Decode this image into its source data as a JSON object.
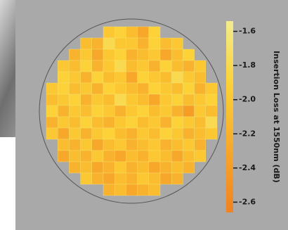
{
  "chart_data": {
    "type": "heatmap",
    "colorbar_label": "Insertion Loss at 1550nm (dB)",
    "zlim": [
      -2.66,
      -1.54
    ],
    "zticks": [
      -1.6,
      -1.8,
      {
        "value": -2,
        "label": "-2.0"
      },
      -2.2,
      -2.4,
      -2.6
    ],
    "colormap": [
      "#ef8320",
      "#f7a82a",
      "#fcd135",
      "#f3ec8e"
    ],
    "z": [
      [
        null,
        null,
        null,
        null,
        null,
        -2.0,
        -1.9,
        -2.1,
        -2.3,
        -1.9,
        null,
        null,
        null,
        null,
        null
      ],
      [
        null,
        null,
        null,
        -2.1,
        -2.2,
        -1.8,
        -2.0,
        -2.0,
        -2.2,
        -1.9,
        -2.1,
        -2.0,
        null,
        null,
        null
      ],
      [
        null,
        null,
        -2.2,
        -2.0,
        -2.3,
        -2.0,
        -1.9,
        -2.2,
        -2.1,
        -2.0,
        -2.3,
        -2.1,
        -1.9,
        null,
        null
      ],
      [
        null,
        -2.0,
        -2.1,
        -1.9,
        -2.2,
        -2.0,
        -1.8,
        -2.1,
        -2.0,
        -2.2,
        -1.9,
        -2.1,
        -2.2,
        -2.0,
        null
      ],
      [
        null,
        -1.9,
        -2.0,
        -2.2,
        -1.9,
        -2.1,
        -2.0,
        -2.3,
        -1.9,
        -2.0,
        -2.1,
        -1.8,
        -2.0,
        -2.1,
        null
      ],
      [
        -2.0,
        -1.9,
        -2.1,
        -2.0,
        -2.2,
        -1.9,
        -2.0,
        -2.1,
        -2.2,
        -1.9,
        -2.0,
        -2.1,
        -1.9,
        -2.2,
        -2.0
      ],
      [
        -2.1,
        -2.0,
        -1.9,
        -2.2,
        -2.0,
        -2.1,
        -1.8,
        -2.0,
        -2.1,
        -2.3,
        -2.0,
        -1.9,
        -2.1,
        -2.0,
        -1.9
      ],
      [
        -1.9,
        -2.2,
        -2.0,
        -2.1,
        -1.9,
        -2.0,
        -2.2,
        -2.0,
        -1.9,
        -2.1,
        -2.0,
        -2.2,
        -2.4,
        -2.0,
        -2.1
      ],
      [
        -2.2,
        -2.0,
        -2.1,
        -1.9,
        -2.1,
        -2.2,
        -2.0,
        -1.9,
        -2.1,
        -2.0,
        -2.2,
        -1.9,
        -2.0,
        -2.1,
        -1.8
      ],
      [
        -2.0,
        -2.3,
        -2.0,
        -2.2,
        -2.0,
        -1.9,
        -2.1,
        -2.2,
        -2.0,
        -2.1,
        -1.9,
        -2.0,
        -2.2,
        -2.1,
        -2.0
      ],
      [
        null,
        -2.1,
        -2.2,
        -2.0,
        -2.3,
        -2.1,
        -2.0,
        -2.2,
        -2.1,
        -2.0,
        -2.2,
        -2.1,
        -2.0,
        -2.2,
        null
      ],
      [
        null,
        -2.3,
        -2.1,
        -2.2,
        -2.0,
        -2.2,
        -2.3,
        -2.1,
        -2.2,
        -2.0,
        -2.1,
        -2.3,
        -2.1,
        -2.0,
        null
      ],
      [
        null,
        null,
        -2.2,
        -2.1,
        -2.3,
        -2.2,
        -2.0,
        -2.2,
        -2.1,
        -2.3,
        -2.2,
        -2.1,
        -2.2,
        null,
        null
      ],
      [
        null,
        null,
        null,
        -2.0,
        -2.2,
        -2.3,
        -2.1,
        -2.2,
        -2.0,
        -2.1,
        -2.3,
        -2.2,
        null,
        null,
        null
      ],
      [
        null,
        null,
        null,
        null,
        null,
        -2.2,
        -2.1,
        -2.3,
        -2.2,
        -2.1,
        null,
        null,
        null,
        null,
        null
      ]
    ]
  }
}
